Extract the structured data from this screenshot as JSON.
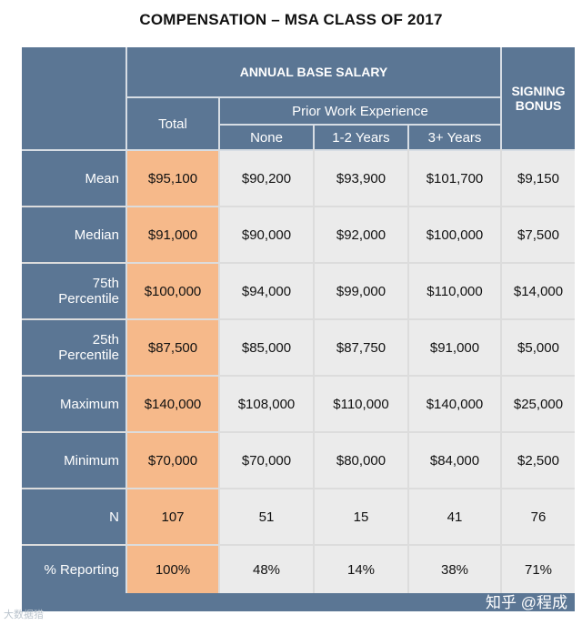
{
  "title": "COMPENSATION – MSA CLASS OF 2017",
  "headers": {
    "annual_base_salary": "ANNUAL BASE SALARY",
    "total": "Total",
    "prior_work_experience": "Prior Work Experience",
    "none": "None",
    "one_two_years": "1-2 Years",
    "three_plus_years": "3+ Years",
    "signing_bonus": "SIGNING BONUS"
  },
  "rows": [
    {
      "label": "Mean",
      "total": "$95,100",
      "none": "$90,200",
      "y12": "$93,900",
      "y3": "$101,700",
      "bonus": "$9,150"
    },
    {
      "label": "Median",
      "total": "$91,000",
      "none": "$90,000",
      "y12": "$92,000",
      "y3": "$100,000",
      "bonus": "$7,500"
    },
    {
      "label": "75th Percentile",
      "total": "$100,000",
      "none": "$94,000",
      "y12": "$99,000",
      "y3": "$110,000",
      "bonus": "$14,000"
    },
    {
      "label": "25th Percentile",
      "total": "$87,500",
      "none": "$85,000",
      "y12": "$87,750",
      "y3": "$91,000",
      "bonus": "$5,000"
    },
    {
      "label": "Maximum",
      "total": "$140,000",
      "none": "$108,000",
      "y12": "$110,000",
      "y3": "$140,000",
      "bonus": "$25,000"
    },
    {
      "label": "Minimum",
      "total": "$70,000",
      "none": "$70,000",
      "y12": "$80,000",
      "y3": "$84,000",
      "bonus": "$2,500"
    },
    {
      "label": "N",
      "total": "107",
      "none": "51",
      "y12": "15",
      "y3": "41",
      "bonus": "76"
    },
    {
      "label": "% Reporting",
      "total": "100%",
      "none": "48%",
      "y12": "14%",
      "y3": "38%",
      "bonus": "71%"
    }
  ],
  "watermarks": {
    "left": "大数据猎",
    "right": "知乎 @程成"
  },
  "colors": {
    "header_blue": "#5b7694",
    "total_orange": "#f6b98a",
    "cell_gray": "#ebebeb"
  }
}
